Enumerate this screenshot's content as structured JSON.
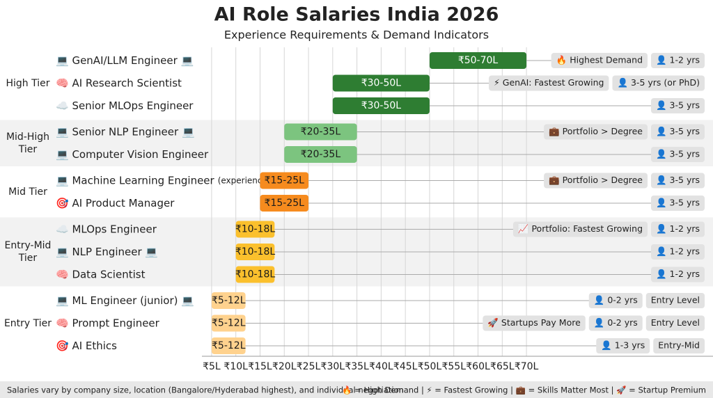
{
  "chart_data": {
    "type": "range_bar",
    "title": "AI Role Salaries India 2026",
    "subtitle": "Experience Requirements & Demand Indicators",
    "xlim": [
      3,
      72
    ],
    "xticks": [
      {
        "value": 5,
        "label": "₹5L"
      },
      {
        "value": 10,
        "label": "₹10L"
      },
      {
        "value": 15,
        "label": "₹15L"
      },
      {
        "value": 20,
        "label": "₹20L"
      },
      {
        "value": 25,
        "label": "₹25L"
      },
      {
        "value": 30,
        "label": "₹30L"
      },
      {
        "value": 35,
        "label": "₹35L"
      },
      {
        "value": 40,
        "label": "₹40L"
      },
      {
        "value": 45,
        "label": "₹45L"
      },
      {
        "value": 50,
        "label": "₹50L"
      },
      {
        "value": 55,
        "label": "₹55L"
      },
      {
        "value": 60,
        "label": "₹60L"
      },
      {
        "value": 65,
        "label": "₹65L"
      },
      {
        "value": 70,
        "label": "₹70L"
      }
    ],
    "grid": true,
    "tiers": [
      {
        "name": "High Tier",
        "color": "#2e7d32",
        "label_color": "#ffffff",
        "roles": [
          {
            "name": "💻 GenAI/LLM Engineer 💻",
            "low": 50,
            "high": 70,
            "value_label": "₹50-70L",
            "badges": [
              "🔥 Highest Demand",
              "👤 1-2 yrs"
            ]
          },
          {
            "name": "🧠 AI Research Scientist",
            "low": 30,
            "high": 50,
            "value_label": "₹30-50L",
            "badges": [
              "⚡ GenAI: Fastest Growing",
              "👤 3-5 yrs (or PhD)"
            ]
          },
          {
            "name": "☁️ Senior MLOps Engineer",
            "low": 30,
            "high": 50,
            "value_label": "₹30-50L",
            "badges": [
              "👤 3-5 yrs"
            ]
          }
        ]
      },
      {
        "name": "Mid-High Tier",
        "color": "#7cc47f",
        "label_color": "#1b1b1b",
        "roles": [
          {
            "name": "💻 Senior NLP Engineer 💻",
            "low": 20,
            "high": 35,
            "value_label": "₹20-35L",
            "badges": [
              "💼 Portfolio > Degree",
              "👤 3-5 yrs"
            ]
          },
          {
            "name": "💻 Computer Vision Engineer",
            "low": 20,
            "high": 35,
            "value_label": "₹20-35L",
            "badges": [
              "👤 3-5 yrs"
            ]
          }
        ]
      },
      {
        "name": "Mid Tier",
        "color": "#f68b1e",
        "label_color": "#1b1b1b",
        "roles": [
          {
            "name": "💻 Machine Learning Engineer",
            "note": "(experienced)",
            "low": 15,
            "high": 25,
            "value_label": "₹15-25L",
            "badges": [
              "💼 Portfolio > Degree",
              "👤 3-5 yrs"
            ]
          },
          {
            "name": "🎯 AI Product Manager",
            "low": 15,
            "high": 25,
            "value_label": "₹15-25L",
            "badges": [
              "👤 3-5 yrs"
            ]
          }
        ]
      },
      {
        "name": "Entry-Mid Tier",
        "color": "#fbc02d",
        "label_color": "#1b1b1b",
        "roles": [
          {
            "name": "☁️ MLOps Engineer",
            "low": 10,
            "high": 18,
            "value_label": "₹10-18L",
            "badges": [
              "📈 Portfolio: Fastest Growing",
              "👤 1-2 yrs"
            ]
          },
          {
            "name": "💻 NLP Engineer 💻",
            "low": 10,
            "high": 18,
            "value_label": "₹10-18L",
            "badges": [
              "👤 1-2 yrs"
            ]
          },
          {
            "name": "🧠 Data Scientist",
            "low": 10,
            "high": 18,
            "value_label": "₹10-18L",
            "badges": [
              "👤 1-2 yrs"
            ]
          }
        ]
      },
      {
        "name": "Entry Tier",
        "color": "#ffd28e",
        "label_color": "#1b1b1b",
        "roles": [
          {
            "name": "💻 ML Engineer (junior) 💻",
            "low": 5,
            "high": 12,
            "value_label": "₹5-12L",
            "badges": [
              "👤 0-2 yrs",
              "Entry Level"
            ]
          },
          {
            "name": "🧠 Prompt Engineer",
            "low": 5,
            "high": 12,
            "value_label": "₹5-12L",
            "badges": [
              "🚀 Startups Pay More",
              "👤 0-2 yrs",
              "Entry Level"
            ]
          },
          {
            "name": "🎯 AI Ethics",
            "low": 5,
            "high": 12,
            "value_label": "₹5-12L",
            "badges": [
              "👤 1-3 yrs",
              "Entry-Mid"
            ]
          }
        ]
      }
    ],
    "footnote": "Salaries vary by company size, location (Bangalore/Hyderabad highest), and individual negotiation",
    "legend_note": "🔥 = High Demand | ⚡ = Fastest Growing | 💼 = Skills Matter Most | 🚀 = Startup Premium"
  }
}
